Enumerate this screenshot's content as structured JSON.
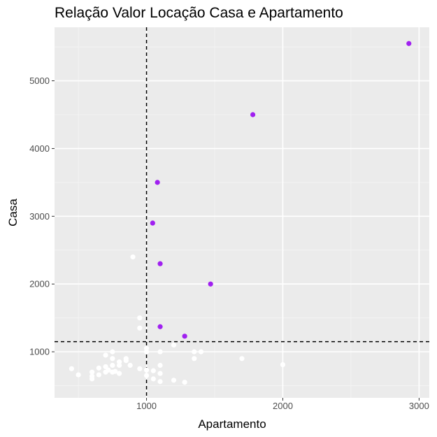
{
  "chart_data": {
    "type": "scatter",
    "title": "Relação Valor Locação Casa e Apartamento",
    "xlabel": "Apartamento",
    "ylabel": "Casa",
    "xlim": [
      325,
      3075
    ],
    "ylim": [
      320,
      5790
    ],
    "x_ticks": [
      1000,
      2000,
      3000
    ],
    "y_ticks": [
      1000,
      2000,
      3000,
      4000,
      5000
    ],
    "x_tick_labels": [
      "1000",
      "2000",
      "3000"
    ],
    "y_tick_labels": [
      "1000",
      "2000",
      "3000",
      "4000",
      "5000"
    ],
    "grid": true,
    "reference_lines": {
      "x": 1000,
      "y": 1150
    },
    "series": [
      {
        "color": "#a020f0",
        "points": [
          [
            2925,
            5550
          ],
          [
            1780,
            4500
          ],
          [
            1080,
            3500
          ],
          [
            1045,
            2900
          ],
          [
            1100,
            2300
          ],
          [
            1470,
            2000
          ],
          [
            1100,
            1370
          ],
          [
            1280,
            1230
          ]
        ]
      },
      {
        "color": "#ffffff",
        "points": [
          [
            900,
            2400
          ],
          [
            950,
            1500
          ],
          [
            950,
            1350
          ],
          [
            1000,
            1050
          ],
          [
            1100,
            1000
          ],
          [
            1350,
            1000
          ],
          [
            1400,
            1000
          ],
          [
            1200,
            1100
          ],
          [
            1350,
            900
          ],
          [
            1700,
            900
          ],
          [
            2000,
            810
          ],
          [
            450,
            750
          ],
          [
            500,
            660
          ],
          [
            600,
            700
          ],
          [
            600,
            640
          ],
          [
            600,
            600
          ],
          [
            650,
            760
          ],
          [
            650,
            660
          ],
          [
            700,
            950
          ],
          [
            700,
            780
          ],
          [
            700,
            700
          ],
          [
            750,
            1000
          ],
          [
            750,
            900
          ],
          [
            750,
            800
          ],
          [
            750,
            700
          ],
          [
            800,
            850
          ],
          [
            800,
            800
          ],
          [
            800,
            680
          ],
          [
            850,
            900
          ],
          [
            850,
            870
          ],
          [
            880,
            800
          ],
          [
            950,
            750
          ],
          [
            1000,
            1000
          ],
          [
            1000,
            730
          ],
          [
            1000,
            650
          ],
          [
            1050,
            720
          ],
          [
            1050,
            600
          ],
          [
            1100,
            800
          ],
          [
            1100,
            680
          ],
          [
            1100,
            560
          ],
          [
            1200,
            580
          ],
          [
            1280,
            550
          ],
          [
            770,
            710
          ],
          [
            720,
            730
          ]
        ]
      }
    ]
  }
}
